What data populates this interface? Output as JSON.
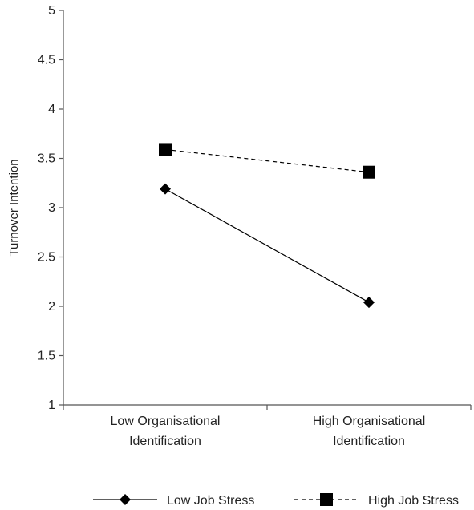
{
  "chart_data": {
    "type": "line",
    "title": "",
    "xlabel": "",
    "ylabel": "Turnover Intention",
    "ylim": [
      1,
      5
    ],
    "yticks": [
      "1",
      "1.5",
      "2",
      "2.5",
      "3",
      "3.5",
      "4",
      "4.5",
      "5"
    ],
    "categories": [
      [
        "Low Organisational",
        "Identification"
      ],
      [
        "High Organisational",
        "Identification"
      ]
    ],
    "series": [
      {
        "name": "Low Job Stress",
        "values": [
          3.19,
          2.04
        ],
        "line": "solid",
        "marker": "diamond",
        "color": "#000000"
      },
      {
        "name": "High Job Stress",
        "values": [
          3.59,
          3.36
        ],
        "line": "dashed",
        "marker": "square",
        "color": "#000000"
      }
    ],
    "grid": false,
    "legend": "bottom"
  }
}
